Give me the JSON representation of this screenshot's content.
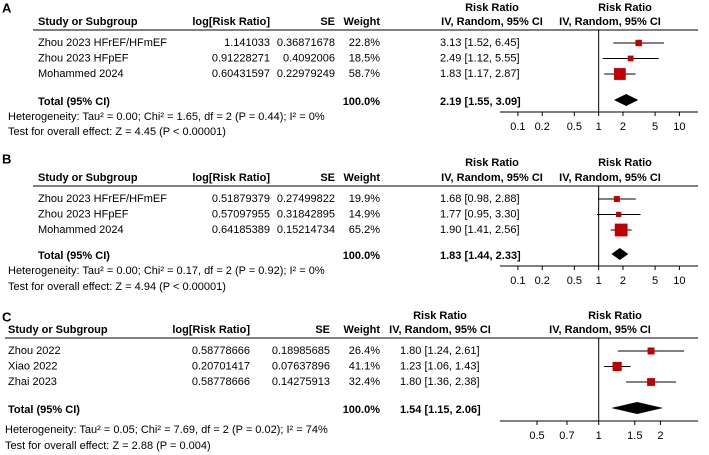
{
  "chart_data": [
    {
      "type": "forest",
      "panel": "A",
      "table_header": {
        "study": "Study or Subgroup",
        "log_rr": "log[Risk Ratio]",
        "se": "SE",
        "weight": "Weight",
        "effect_title": "Risk Ratio",
        "effect_method": "IV, Random, 95% CI"
      },
      "plot_header": {
        "title": "Risk Ratio",
        "method": "IV, Random, 95% CI"
      },
      "studies": [
        "Zhou 2023 HFrEF/HFmEF",
        "Zhou 2023 HFpEF",
        "Mohammed 2024"
      ],
      "log_rr": [
        1.141033,
        0.91228271,
        0.60431597
      ],
      "se": [
        0.36871678,
        0.4092006,
        0.22979249
      ],
      "weights": [
        22.8,
        18.5,
        58.7
      ],
      "weight_labels": [
        "22.8%",
        "18.5%",
        "58.7%"
      ],
      "rr": [
        3.13,
        2.49,
        1.83
      ],
      "lower": [
        1.52,
        1.12,
        1.17
      ],
      "upper": [
        6.45,
        5.55,
        2.87
      ],
      "ci_labels": [
        "3.13 [1.52, 6.45]",
        "2.49 [1.12, 5.55]",
        "1.83 [1.17, 2.87]"
      ],
      "total": {
        "label": "Total (95% CI)",
        "weight_label": "100.0%",
        "rr": 2.19,
        "lower": 1.55,
        "upper": 3.09,
        "ci_label": "2.19 [1.55, 3.09]"
      },
      "heterogeneity": "Heterogeneity: Tau² = 0.00; Chi² = 1.65, df = 2 (P = 0.44); I² = 0%",
      "overall_effect": "Test for overall effect: Z = 4.45 (P < 0.00001)",
      "log_x": true,
      "xlim": [
        0.06,
        17
      ],
      "xticks": [
        0.1,
        0.2,
        0.5,
        1,
        2,
        5,
        10
      ],
      "color": "#c00000"
    },
    {
      "type": "forest",
      "panel": "B",
      "table_header": {
        "study": "Study or Subgroup",
        "log_rr": "log[Risk Ratio]",
        "se": "SE",
        "weight": "Weight",
        "effect_title": "Risk Ratio",
        "effect_method": "IV, Random, 95% CI"
      },
      "plot_header": {
        "title": "Risk Ratio",
        "method": "IV, Random, 95% CI"
      },
      "studies": [
        "Zhou 2023 HFrEF/HFmEF",
        "Zhou 2023 HFpEF",
        "Mohammed 2024"
      ],
      "log_rr": [
        0.51879379,
        0.57097955,
        0.64185389
      ],
      "se": [
        0.27499822,
        0.31842895,
        0.15214734
      ],
      "weights": [
        19.9,
        14.9,
        65.2
      ],
      "weight_labels": [
        "19.9%",
        "14.9%",
        "65.2%"
      ],
      "rr": [
        1.68,
        1.77,
        1.9
      ],
      "lower": [
        0.98,
        0.95,
        1.41
      ],
      "upper": [
        2.88,
        3.3,
        2.56
      ],
      "ci_labels": [
        "1.68 [0.98, 2.88]",
        "1.77 [0.95, 3.30]",
        "1.90 [1.41, 2.56]"
      ],
      "total": {
        "label": "Total (95% CI)",
        "weight_label": "100.0%",
        "rr": 1.83,
        "lower": 1.44,
        "upper": 2.33,
        "ci_label": "1.83 [1.44, 2.33]"
      },
      "heterogeneity": "Heterogeneity: Tau² = 0.00; Chi² = 0.17, df = 2 (P = 0.92); I² = 0%",
      "overall_effect": "Test for overall effect: Z = 4.94 (P < 0.00001)",
      "log_x": true,
      "xlim": [
        0.06,
        17
      ],
      "xticks": [
        0.1,
        0.2,
        0.5,
        1,
        2,
        5,
        10
      ],
      "color": "#c00000"
    },
    {
      "type": "forest",
      "panel": "C",
      "table_header": {
        "study": "Study or Subgroup",
        "log_rr": "log[Risk Ratio]",
        "se": "SE",
        "weight": "Weight",
        "effect_title": "Risk Ratio",
        "effect_method": "IV, Random, 95% CI"
      },
      "plot_header": {
        "title": "Risk Ratio",
        "method": "IV, Random, 95% CI"
      },
      "studies": [
        "Zhou 2022",
        "Xiao 2022",
        "Zhai 2023"
      ],
      "log_rr": [
        0.58778666,
        0.20701417,
        0.58778666
      ],
      "se": [
        0.18985685,
        0.07637896,
        0.14275913
      ],
      "weights": [
        26.4,
        41.1,
        32.4
      ],
      "weight_labels": [
        "26.4%",
        "41.1%",
        "32.4%"
      ],
      "rr": [
        1.8,
        1.23,
        1.8
      ],
      "lower": [
        1.24,
        1.06,
        1.36
      ],
      "upper": [
        2.61,
        1.43,
        2.38
      ],
      "ci_labels": [
        "1.80 [1.24, 2.61]",
        "1.23 [1.06, 1.43]",
        "1.80 [1.36, 2.38]"
      ],
      "total": {
        "label": "Total (95% CI)",
        "weight_label": "100.0%",
        "rr": 1.54,
        "lower": 1.15,
        "upper": 2.06,
        "ci_label": "1.54 [1.15, 2.06]"
      },
      "heterogeneity": "Heterogeneity: Tau² = 0.05; Chi² = 7.69, df = 2 (P = 0.02); I² = 74%",
      "overall_effect": "Test for overall effect: Z = 2.88 (P = 0.004)",
      "log_x": true,
      "xlim": [
        0.33,
        3.05
      ],
      "xticks": [
        0.5,
        0.7,
        1,
        1.5,
        2
      ],
      "color": "#c00000"
    }
  ]
}
